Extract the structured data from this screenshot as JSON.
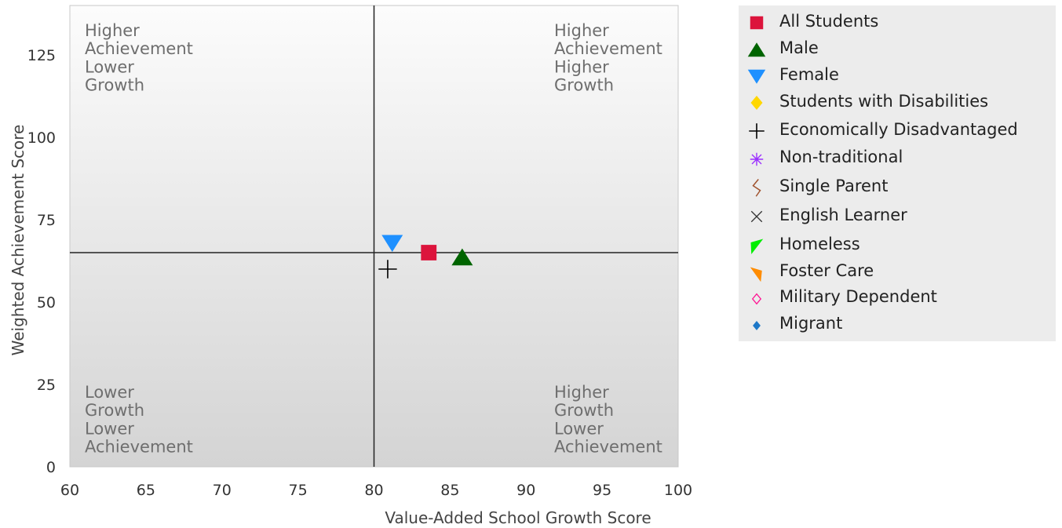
{
  "chart_data": {
    "type": "scatter",
    "xlabel": "Value-Added School Growth Score",
    "ylabel": "Weighted Achievement Score",
    "xlim": [
      60,
      100
    ],
    "ylim": [
      0,
      140
    ],
    "xticks": [
      60,
      65,
      70,
      75,
      80,
      85,
      90,
      95,
      100
    ],
    "yticks": [
      0,
      25,
      50,
      75,
      100,
      125
    ],
    "reference_lines": {
      "x": 80,
      "y": 65
    },
    "grid": false,
    "legend_position": "right",
    "quadrant_labels": {
      "top_left": [
        "Higher",
        "Achievement",
        "Lower",
        "Growth"
      ],
      "top_right": [
        "Higher",
        "Achievement",
        "Higher",
        "Growth"
      ],
      "bottom_left": [
        "Lower",
        "Growth",
        "Lower",
        "Achievement"
      ],
      "bottom_right": [
        "Higher",
        "Growth",
        "Lower",
        "Achievement"
      ]
    },
    "series": [
      {
        "name": "All Students",
        "marker": "square",
        "color": "#dc143c",
        "points": [
          [
            83.6,
            65
          ]
        ]
      },
      {
        "name": "Male",
        "marker": "triangle-up",
        "color": "#006400",
        "points": [
          [
            85.8,
            63.5
          ]
        ]
      },
      {
        "name": "Female",
        "marker": "triangle-down",
        "color": "#1e90ff",
        "points": [
          [
            81.2,
            68
          ]
        ]
      },
      {
        "name": "Students with Disabilities",
        "marker": "diamond",
        "color": "#ffd700",
        "points": []
      },
      {
        "name": "Economically Disadvantaged",
        "marker": "plus",
        "color": "#000000",
        "points": [
          [
            80.9,
            60
          ]
        ]
      },
      {
        "name": "Non-traditional",
        "marker": "asterisk",
        "color": "#9b30ff",
        "points": []
      },
      {
        "name": "Single Parent",
        "marker": "squiggle",
        "color": "#a0522d",
        "points": []
      },
      {
        "name": "English Learner",
        "marker": "x",
        "color": "#333333",
        "points": []
      },
      {
        "name": "Homeless",
        "marker": "corner-triangle",
        "color": "#00ee00",
        "points": []
      },
      {
        "name": "Foster Care",
        "marker": "corner-triangle-left",
        "color": "#ff8c00",
        "points": []
      },
      {
        "name": "Military Dependent",
        "marker": "diamond-open",
        "color": "#ff1493",
        "points": []
      },
      {
        "name": "Migrant",
        "marker": "small-diamond",
        "color": "#1e78c8",
        "points": []
      }
    ]
  }
}
